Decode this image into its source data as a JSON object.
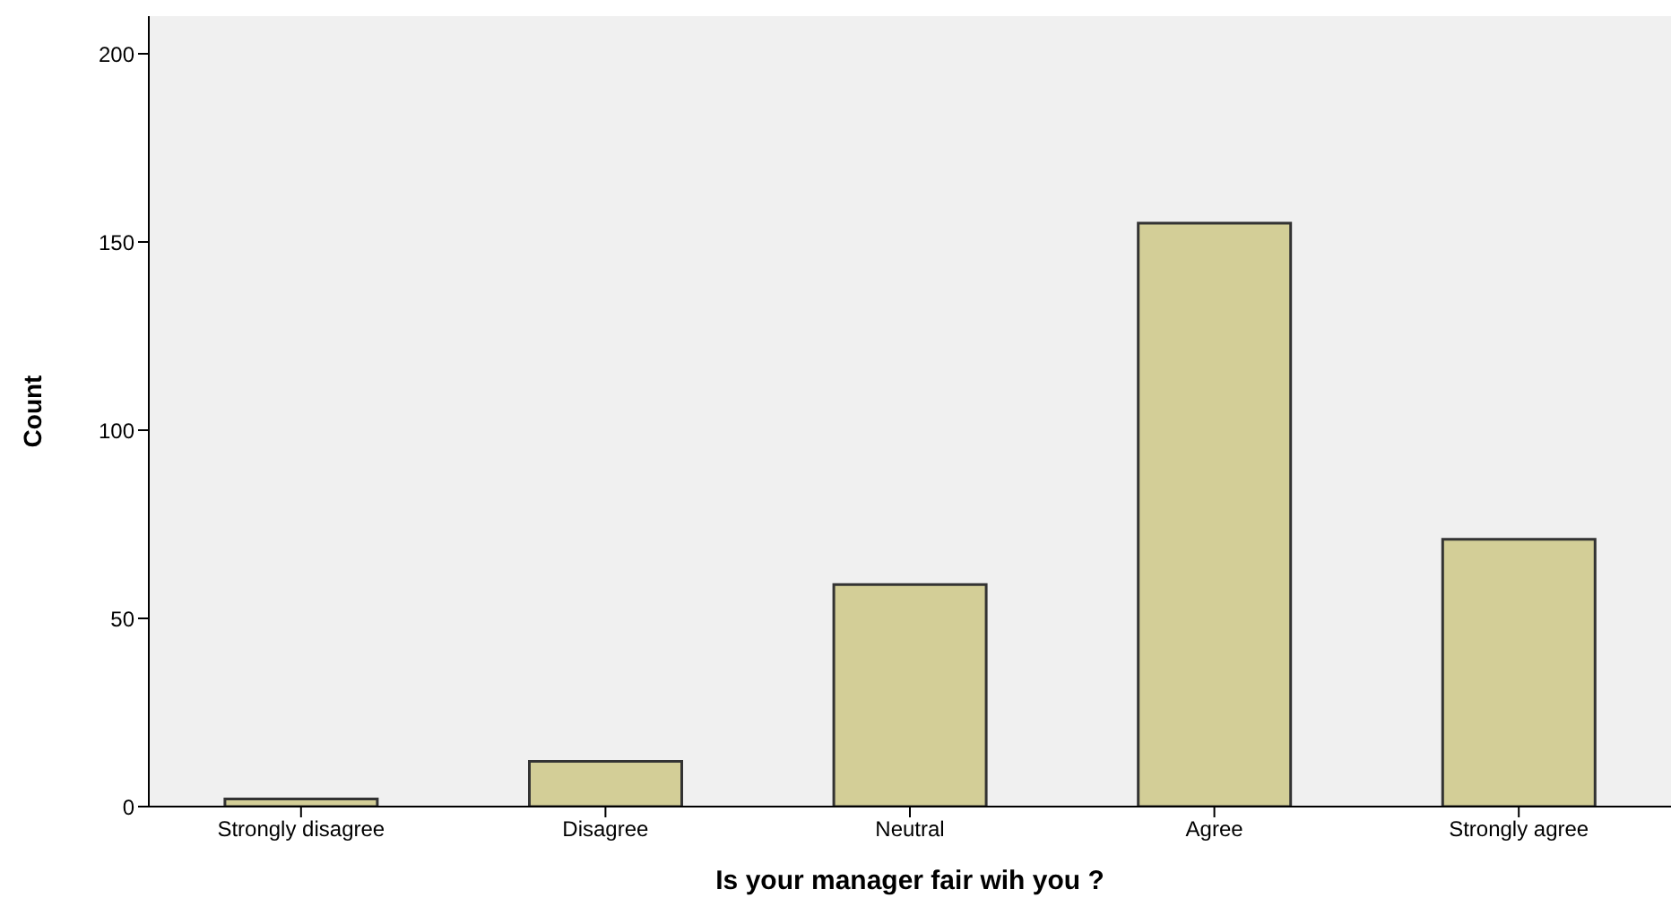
{
  "chart_data": {
    "type": "bar",
    "xlabel": "Is your manager fair wih you ?",
    "ylabel": "Count",
    "categories": [
      "Strongly disagree",
      "Disagree",
      "Neutral",
      "Agree",
      "Strongly agree"
    ],
    "values": [
      2,
      12,
      59,
      155,
      71
    ],
    "color": "#d3ce97",
    "ylim": [
      0,
      210
    ],
    "yticks": [
      0,
      50,
      100,
      150,
      200
    ],
    "grid": false
  }
}
